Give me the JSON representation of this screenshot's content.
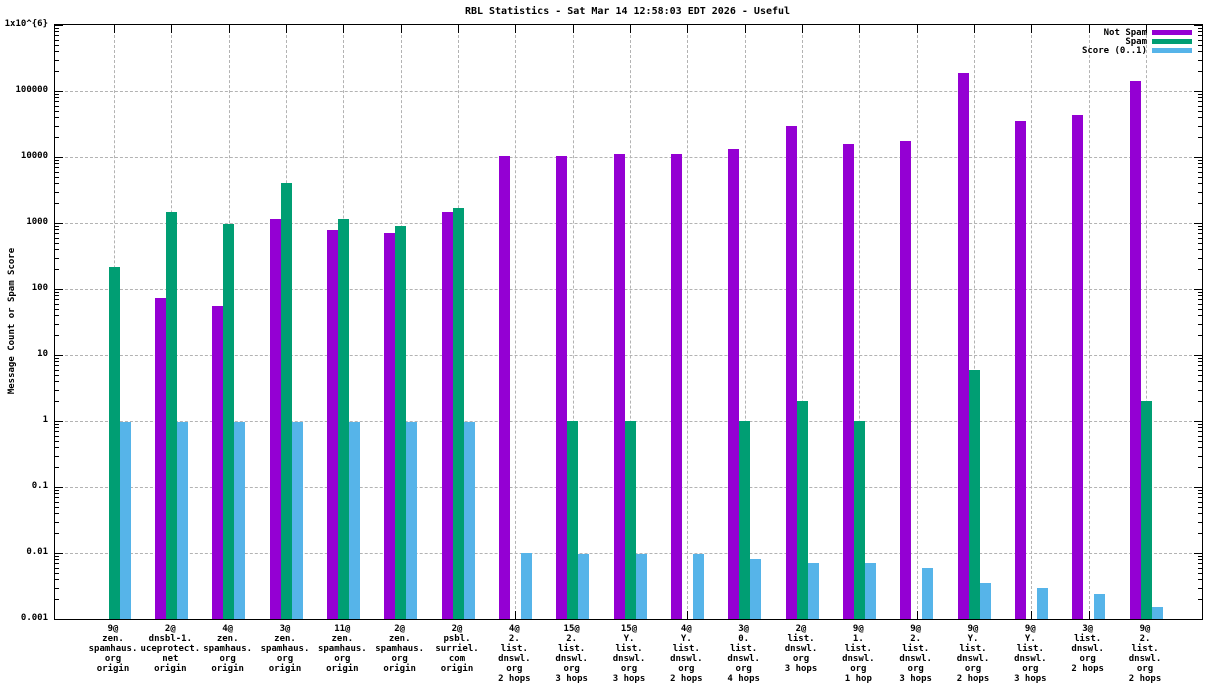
{
  "title": "RBL Statistics - Sat Mar 14 12:58:03 EDT 2026 - Useful",
  "chart_data": {
    "type": "bar",
    "scale": "log-y",
    "title": "RBL Statistics - Sat Mar 14 12:58:03 EDT 2026 - Useful",
    "xlabel": "",
    "ylabel": "Message Count or Spam Score",
    "ylim": [
      0.001,
      1000000
    ],
    "grid": true,
    "legend_position": "top-right",
    "ytick_labels": [
      "1x10^{6}",
      "100000",
      "10000",
      "1000",
      "100",
      "10",
      "1",
      "0.1",
      "0.01",
      "0.001"
    ],
    "categories": [
      [
        "9@",
        "zen.",
        "spamhaus.",
        "org",
        "origin"
      ],
      [
        "2@",
        "dnsbl-1.",
        "uceprotect.",
        "net",
        "origin"
      ],
      [
        "4@",
        "zen.",
        "spamhaus.",
        "org",
        "origin"
      ],
      [
        "3@",
        "zen.",
        "spamhaus.",
        "org",
        "origin"
      ],
      [
        "11@",
        "zen.",
        "spamhaus.",
        "org",
        "origin"
      ],
      [
        "2@",
        "zen.",
        "spamhaus.",
        "org",
        "origin"
      ],
      [
        "2@",
        "psbl.",
        "surriel.",
        "com",
        "origin"
      ],
      [
        "4@",
        "2.",
        "list.",
        "dnswl.",
        "org",
        "2 hops"
      ],
      [
        "15@",
        "2.",
        "list.",
        "dnswl.",
        "org",
        "3 hops"
      ],
      [
        "15@",
        "Y.",
        "list.",
        "dnswl.",
        "org",
        "3 hops"
      ],
      [
        "4@",
        "Y.",
        "list.",
        "dnswl.",
        "org",
        "2 hops"
      ],
      [
        "3@",
        "0.",
        "list.",
        "dnswl.",
        "org",
        "4 hops"
      ],
      [
        "2@",
        "list.",
        "dnswl.",
        "org",
        "3 hops"
      ],
      [
        "9@",
        "1.",
        "list.",
        "dnswl.",
        "org",
        "1 hop"
      ],
      [
        "9@",
        "2.",
        "list.",
        "dnswl.",
        "org",
        "3 hops"
      ],
      [
        "9@",
        "Y.",
        "list.",
        "dnswl.",
        "org",
        "2 hops"
      ],
      [
        "9@",
        "Y.",
        "list.",
        "dnswl.",
        "org",
        "3 hops"
      ],
      [
        "3@",
        "list.",
        "dnswl.",
        "org",
        "2 hops"
      ],
      [
        "9@",
        "2.",
        "list.",
        "dnswl.",
        "org",
        "2 hops"
      ]
    ],
    "series": [
      {
        "name": "Not Spam",
        "color": "#9400d3",
        "values": [
          null,
          72,
          55,
          1150,
          780,
          700,
          1450,
          10500,
          10500,
          11000,
          11000,
          13000,
          30000,
          15500,
          17500,
          185000,
          35000,
          43000,
          140000
        ]
      },
      {
        "name": "Spam",
        "color": "#009e73",
        "values": [
          215,
          1450,
          970,
          4000,
          1150,
          900,
          1700,
          null,
          1,
          1,
          null,
          1,
          2,
          1,
          null,
          6,
          null,
          null,
          2
        ]
      },
      {
        "name": "Score (0..1)",
        "color": "#56b4e9",
        "values": [
          0.97,
          0.97,
          0.97,
          0.97,
          0.97,
          0.97,
          0.97,
          0.0099,
          0.0095,
          0.0095,
          0.0095,
          0.008,
          0.007,
          0.007,
          0.006,
          0.0035,
          0.003,
          0.0024,
          0.0015
        ]
      }
    ]
  }
}
